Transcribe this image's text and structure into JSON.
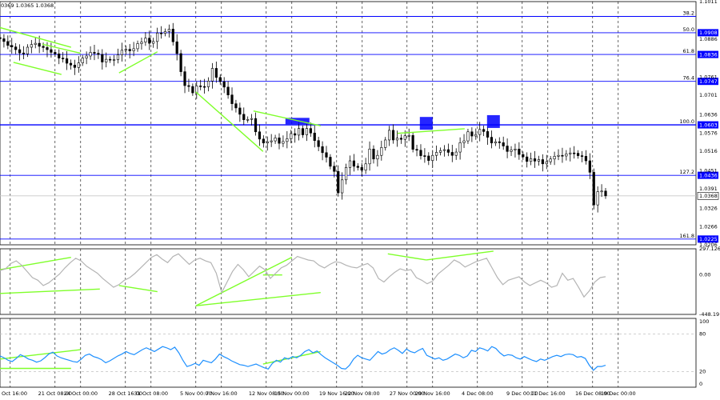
{
  "header": {
    "ohlc_text": "0369 1.0365 1.0368"
  },
  "colors": {
    "up_candle": "#000000",
    "fib_line": "#0000ff",
    "trend_line": "#7fff2a",
    "cci_line": "#b4b4b4",
    "rsi_line": "#1e90ff",
    "marker_box": "#0000ff",
    "grid": "#000000",
    "current_price_line": "#c8c8c8"
  },
  "chart_data": [
    {
      "type": "candlestick",
      "panel": "price",
      "ylim": [
        1.0206,
        1.1011
      ],
      "price_axis_ticks": [
        "1.1011",
        "1.0886",
        "1.0761",
        "1.0701",
        "1.0636",
        "1.0576",
        "1.0516",
        "1.0451",
        "1.0391",
        "1.0326",
        "1.0266",
        "1.0206"
      ],
      "x_tick_labels": [
        "16 Oct 16:00",
        "21 Oct 08:00",
        "24 Oct 00:00",
        "28 Oct 16:00",
        "31 Oct 08:00",
        "5 Nov 00:00",
        "7 Nov 16:00",
        "12 Nov 08:00",
        "15 Nov 00:00",
        "19 Nov 16:00",
        "22 Nov 08:00",
        "27 Nov 00:00",
        "29 Nov 16:00",
        "4 Dec 08:00",
        "9 Dec 00:00",
        "11 Dec 16:00",
        "16 Dec 08:00",
        "19 Dec 00:00"
      ],
      "fib_levels": [
        {
          "ratio": "38.2",
          "price": 1.0962
        },
        {
          "ratio": "50.0",
          "price": 1.0908,
          "box": "1.0908"
        },
        {
          "ratio": "61.8",
          "price": 1.0836,
          "box": "1.0836"
        },
        {
          "ratio": "76.4",
          "price": 1.0747,
          "box": "1.0747"
        },
        {
          "ratio": "100.0",
          "price": 1.0603,
          "box": "1.0603"
        },
        {
          "ratio": "127.2",
          "price": 1.0436,
          "box": "1.0436"
        },
        {
          "ratio": "161.8",
          "price": 1.0225,
          "box": "1.0225"
        }
      ],
      "current_price": 1.0368,
      "current_price_box": "1.0368",
      "close_series": [
        1.0888,
        1.0879,
        1.0866,
        1.0861,
        1.0852,
        1.0841,
        1.0838,
        1.086,
        1.0869,
        1.0873,
        1.0863,
        1.0859,
        1.0852,
        1.0843,
        1.0838,
        1.0824,
        1.0822,
        1.0807,
        1.0801,
        1.0793,
        1.0808,
        1.0824,
        1.0831,
        1.0843,
        1.084,
        1.0836,
        1.0811,
        1.082,
        1.0818,
        1.0819,
        1.0835,
        1.085,
        1.0853,
        1.0848,
        1.0855,
        1.0872,
        1.0877,
        1.089,
        1.0873,
        1.0879,
        1.0907,
        1.0906,
        1.0912,
        1.092,
        1.0878,
        1.0839,
        1.0779,
        1.0733,
        1.073,
        1.0709,
        1.0732,
        1.073,
        1.0729,
        1.0748,
        1.079,
        1.076,
        1.0746,
        1.0728,
        1.0702,
        1.0673,
        1.0659,
        1.0638,
        1.062,
        1.0621,
        1.0624,
        1.058,
        1.0556,
        1.0543,
        1.0547,
        1.055,
        1.056,
        1.0542,
        1.0548,
        1.0557,
        1.0574,
        1.0569,
        1.0591,
        1.057,
        1.0591,
        1.0576,
        1.0551,
        1.0531,
        1.0511,
        1.0496,
        1.0466,
        1.0449,
        1.0378,
        1.0421,
        1.0462,
        1.0484,
        1.0466,
        1.0462,
        1.0453,
        1.0474,
        1.0523,
        1.049,
        1.0502,
        1.0528,
        1.0553,
        1.0585,
        1.0553,
        1.0559,
        1.0555,
        1.0567,
        1.0568,
        1.0522,
        1.0519,
        1.0501,
        1.05,
        1.0485,
        1.0502,
        1.0512,
        1.0518,
        1.0521,
        1.0512,
        1.0502,
        1.0513,
        1.0544,
        1.055,
        1.058,
        1.0566,
        1.0571,
        1.0588,
        1.0581,
        1.0562,
        1.0543,
        1.0547,
        1.0544,
        1.0533,
        1.0515,
        1.052,
        1.0523,
        1.0505,
        1.0497,
        1.0482,
        1.0491,
        1.0483,
        1.0488,
        1.0474,
        1.0481,
        1.049,
        1.0499,
        1.0502,
        1.05,
        1.0507,
        1.051,
        1.0509,
        1.0501,
        1.0499,
        1.0484,
        1.0446,
        1.0338,
        1.0382,
        1.0384,
        1.0368
      ],
      "trend_lines": [
        {
          "from": [
            "start",
            1.0925
          ],
          "to": [
            "23 Oct",
            1.086
          ]
        },
        {
          "from": [
            "17 Oct",
            1.081
          ],
          "to": [
            "22 Oct",
            1.077
          ]
        },
        {
          "from": [
            "20 Oct",
            1.087
          ],
          "to": [
            "24 Oct",
            1.084
          ]
        },
        {
          "from": [
            "28 Oct",
            1.0775
          ],
          "to": [
            "1 Nov",
            1.0845
          ]
        },
        {
          "from": [
            "5 Nov",
            1.0712
          ],
          "to": [
            "12 Nov",
            1.0515
          ]
        },
        {
          "from": [
            "11 Nov",
            1.0649
          ],
          "to": [
            "18 Nov",
            1.06
          ]
        },
        {
          "from": [
            "26 Nov",
            1.0575
          ],
          "to": [
            "3 Dec",
            1.059
          ]
        }
      ],
      "marker_boxes": [
        {
          "at": "15 Nov",
          "price": 1.0605
        },
        {
          "at": "29 Nov",
          "price": 1.0608
        },
        {
          "at": "6 Dec",
          "price": 1.0614
        }
      ]
    },
    {
      "type": "line",
      "panel": "cci",
      "ylim": [
        -448.19,
        297.1261
      ],
      "y_tick_labels": [
        "297.1261",
        "0.00",
        "-448.19"
      ],
      "series": [
        {
          "values": [
            50,
            68,
            130,
            160,
            110,
            40,
            -30,
            -60,
            -120,
            -90,
            -40,
            10,
            80,
            140,
            190,
            160,
            100,
            60,
            20,
            -40,
            -90,
            -140,
            -110,
            -60,
            -30,
            20,
            80,
            140,
            200,
            230,
            180,
            140,
            210,
            240,
            180,
            120,
            170,
            190,
            160,
            140,
            20,
            -200,
            -80,
            40,
            120,
            60,
            -20,
            40,
            100,
            60,
            -40,
            20,
            80,
            110,
            160,
            210,
            190,
            170,
            160,
            110,
            80,
            120,
            150,
            140,
            110,
            90,
            80,
            110,
            130,
            80,
            -40,
            -80,
            -20,
            30,
            70,
            50,
            60,
            -30,
            -60,
            -100,
            -70,
            10,
            60,
            110,
            170,
            140,
            90,
            120,
            150,
            170,
            190,
            80,
            -30,
            -110,
            -60,
            -40,
            -20,
            -80,
            -120,
            -90,
            -60,
            -90,
            -140,
            -120,
            20,
            -60,
            -40,
            -140,
            -250,
            -180,
            -80,
            -30,
            -20
          ]
        }
      ],
      "trend_lines": [
        {
          "from": [
            "start",
            60
          ],
          "to": [
            "23 Oct",
            200
          ]
        },
        {
          "from": [
            "start",
            -210
          ],
          "to": [
            "26 Oct",
            -160
          ]
        },
        {
          "from": [
            "28 Oct",
            -120
          ],
          "to": [
            "1 Nov",
            -190
          ]
        },
        {
          "from": [
            "5 Nov",
            -350
          ],
          "to": [
            "15 Nov",
            200
          ]
        },
        {
          "from": [
            "5 Nov",
            -350
          ],
          "to": [
            "18 Nov",
            -200
          ]
        },
        {
          "from": [
            "12 Nov",
            0
          ],
          "to": [
            "14 Nov",
            0
          ]
        },
        {
          "from": [
            "25 Nov",
            240
          ],
          "to": [
            "29 Nov",
            170
          ]
        },
        {
          "from": [
            "29 Nov",
            170
          ],
          "to": [
            "6 Dec",
            270
          ]
        }
      ]
    },
    {
      "type": "line",
      "panel": "rsi",
      "ylim": [
        0,
        100
      ],
      "y_tick_labels": [
        "100",
        "80",
        "20",
        "0"
      ],
      "levels": [
        80,
        20
      ],
      "series": [
        {
          "values": [
            45,
            42,
            38,
            36,
            41,
            47,
            44,
            40,
            38,
            35,
            37,
            42,
            48,
            51,
            45,
            42,
            40,
            38,
            36,
            35,
            40,
            46,
            48,
            44,
            42,
            39,
            34,
            37,
            41,
            45,
            48,
            52,
            49,
            47,
            51,
            55,
            58,
            55,
            52,
            56,
            60,
            58,
            55,
            59,
            50,
            38,
            28,
            30,
            33,
            30,
            38,
            36,
            34,
            40,
            48,
            44,
            41,
            37,
            34,
            31,
            30,
            28,
            30,
            32,
            29,
            26,
            24,
            33,
            38,
            35,
            42,
            40,
            44,
            42,
            46,
            52,
            55,
            50,
            53,
            47,
            42,
            38,
            34,
            30,
            25,
            24,
            30,
            40,
            46,
            42,
            40,
            38,
            45,
            52,
            48,
            50,
            55,
            58,
            54,
            49,
            56,
            52,
            50,
            54,
            57,
            46,
            43,
            40,
            42,
            38,
            40,
            44,
            48,
            46,
            42,
            45,
            54,
            52,
            58,
            56,
            53,
            60,
            57,
            50,
            45,
            47,
            46,
            42,
            40,
            44,
            41,
            38,
            36,
            40,
            38,
            41,
            44,
            46,
            44,
            47,
            48,
            47,
            43,
            44,
            41,
            30,
            22,
            28,
            28,
            30
          ]
        }
      ],
      "trend_lines": [
        {
          "from": [
            "start",
            40
          ],
          "to": [
            "24 Oct",
            55
          ]
        },
        {
          "from": [
            "start",
            25
          ],
          "to": [
            "23 Oct",
            25
          ]
        },
        {
          "from": [
            "12 Nov",
            32
          ],
          "to": [
            "18 Nov",
            52
          ]
        }
      ]
    }
  ]
}
